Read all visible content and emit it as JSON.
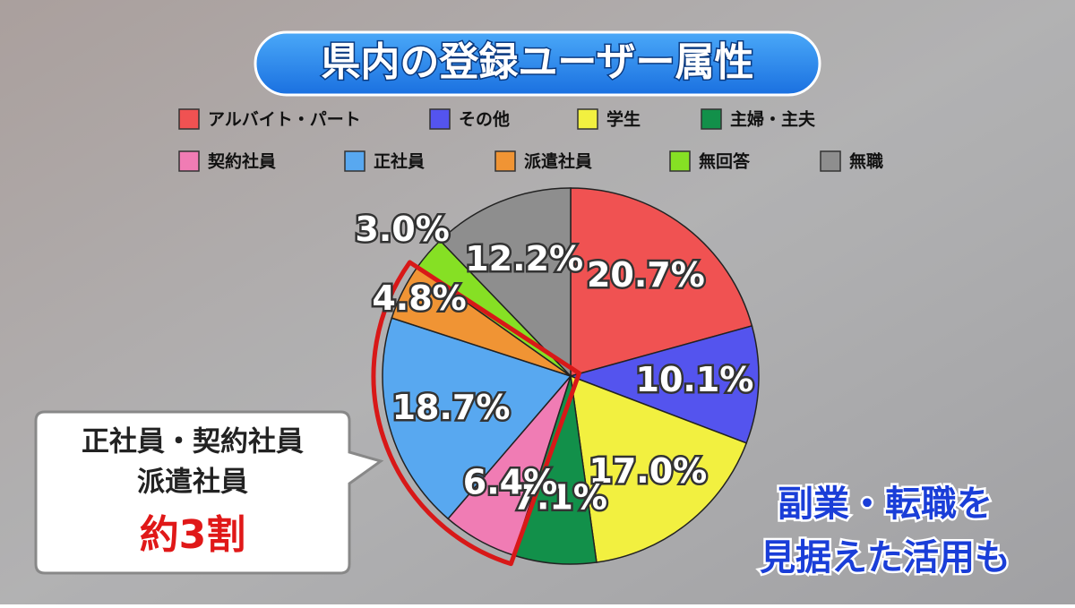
{
  "chart_data": {
    "type": "pie",
    "title": "県内の登録ユーザー属性",
    "categories": [
      "アルバイト・パート",
      "その他",
      "学生",
      "主婦・主夫",
      "契約社員",
      "正社員",
      "派遣社員",
      "無回答",
      "無職"
    ],
    "values": [
      20.7,
      10.1,
      17.0,
      7.1,
      6.4,
      18.7,
      4.8,
      3.0,
      12.2
    ],
    "value_labels": [
      "20.7%",
      "10.1%",
      "17.0%",
      "7.1%",
      "6.4%",
      "18.7%",
      "4.8%",
      "3.0%",
      "12.2%"
    ],
    "colors": [
      "#f05252",
      "#5454ee",
      "#f2f040",
      "#12904a",
      "#f07cb4",
      "#58a8f0",
      "#f09434",
      "#86e024",
      "#8e8e8e"
    ],
    "callout": {
      "lines": [
        "正社員・契約社員",
        "派遣社員"
      ],
      "emphasis": "約3割"
    },
    "caption": [
      "副業・転職を",
      "見据えた活用も"
    ]
  }
}
